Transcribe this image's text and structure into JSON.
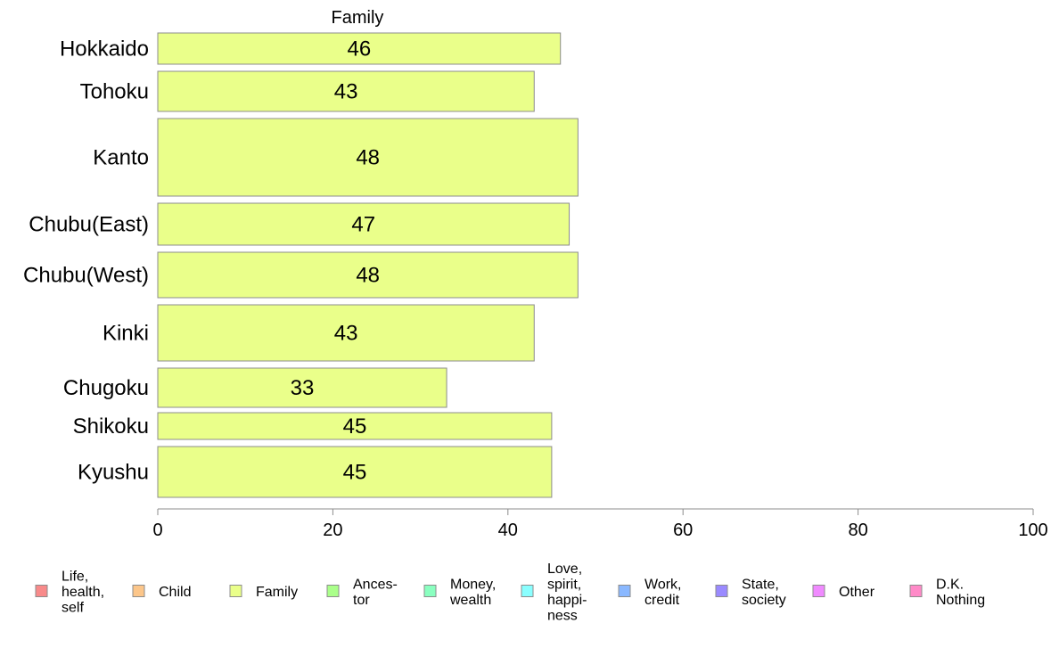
{
  "chart_data": {
    "type": "bar",
    "orientation": "horizontal",
    "title": "Family",
    "categories": [
      "Hokkaido",
      "Tohoku",
      "Kanto",
      "Chubu(East)",
      "Chubu(West)",
      "Kinki",
      "Chugoku",
      "Shikoku",
      "Kyushu"
    ],
    "values": [
      46,
      43,
      48,
      47,
      48,
      43,
      33,
      45,
      45
    ],
    "value_labels": [
      "46",
      "43",
      "48",
      "47",
      "48",
      "43",
      "33",
      "45",
      "45"
    ],
    "series": [
      {
        "name": "Family",
        "values": [
          46,
          43,
          48,
          47,
          48,
          43,
          33,
          45,
          45
        ],
        "color": "#eaff8a"
      }
    ],
    "xlim": [
      0,
      100
    ],
    "xticks": [
      0,
      20,
      40,
      60,
      80,
      100
    ],
    "xtick_labels": [
      "0",
      "20",
      "40",
      "60",
      "80",
      "100"
    ],
    "grid": false,
    "legend_position": "bottom",
    "legend": [
      {
        "lines": [
          "Life,",
          "health,",
          "self"
        ],
        "color": "#f88a8a"
      },
      {
        "lines": [
          "Child"
        ],
        "color": "#fcc68a"
      },
      {
        "lines": [
          "Family"
        ],
        "color": "#eaff8a"
      },
      {
        "lines": [
          "Ances-",
          "tor"
        ],
        "color": "#aaff8a"
      },
      {
        "lines": [
          "Money,",
          "wealth"
        ],
        "color": "#8affc0"
      },
      {
        "lines": [
          "Love,",
          "spirit,",
          "happi-",
          "ness"
        ],
        "color": "#8affff"
      },
      {
        "lines": [
          "Work,",
          "credit"
        ],
        "color": "#8ab8ff"
      },
      {
        "lines": [
          "State,",
          "society"
        ],
        "color": "#9a8aff"
      },
      {
        "lines": [
          "Other"
        ],
        "color": "#f08aff"
      },
      {
        "lines": [
          "D.K.",
          "Nothing"
        ],
        "color": "#ff8ac8"
      }
    ]
  }
}
